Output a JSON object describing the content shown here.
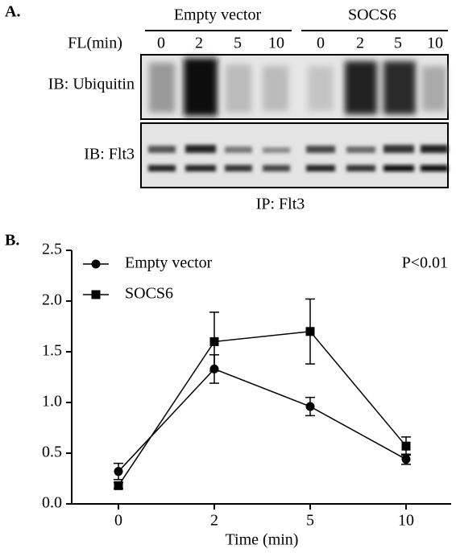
{
  "panel_a": {
    "label": "A.",
    "groups": [
      "Empty vector",
      "SOCS6"
    ],
    "time_label": "FL(min)",
    "lanes": [
      "0",
      "2",
      "5",
      "10",
      "0",
      "2",
      "5",
      "10"
    ],
    "blots": [
      "IB: Ubiquitin",
      "IB: Flt3"
    ],
    "ip_label": "IP: Flt3"
  },
  "chart_data": {
    "type": "line",
    "panel_label": "B.",
    "annotation": "P<0.01",
    "x_label": "Time (min)",
    "categories": [
      "0",
      "2",
      "5",
      "10"
    ],
    "series": [
      {
        "name": "Empty vector",
        "color": "#000000",
        "marker": "circle",
        "values": [
          0.32,
          1.33,
          0.96,
          0.44
        ],
        "errors": [
          0.08,
          0.14,
          0.09,
          0.05
        ]
      },
      {
        "name": "SOCS6",
        "color": "#000000",
        "marker": "square",
        "values": [
          0.18,
          1.6,
          1.7,
          0.57
        ],
        "errors": [
          0.03,
          0.29,
          0.32,
          0.09
        ]
      }
    ],
    "ylim": [
      0,
      2.5
    ],
    "yticks": [
      {
        "value": 0,
        "label": "0.0"
      },
      {
        "value": 0.5,
        "label": "0.5"
      },
      {
        "value": 1,
        "label": "1.0"
      },
      {
        "value": 1.5,
        "label": "1.5"
      },
      {
        "value": 2,
        "label": "2.0"
      },
      {
        "value": 2.5,
        "label": "2.5"
      }
    ],
    "legend": "upper left"
  }
}
